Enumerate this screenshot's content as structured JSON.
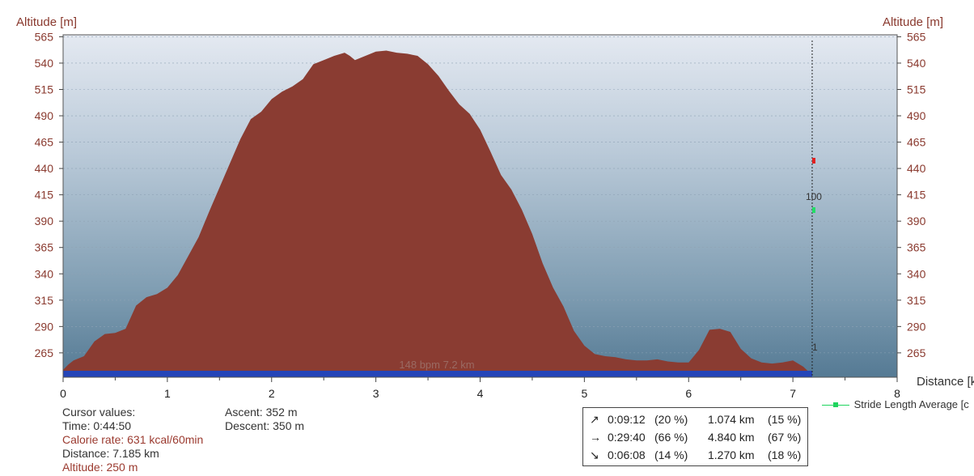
{
  "chart_data": {
    "type": "area",
    "ylabel_left": "Altitude [m]",
    "ylabel_right": "Altitude [m]",
    "xlabel": "Distance [km]",
    "xlim": [
      0,
      8
    ],
    "ylim": [
      248,
      573
    ],
    "yticks": [
      265,
      290,
      315,
      340,
      365,
      390,
      415,
      440,
      465,
      490,
      515,
      540,
      565
    ],
    "xticks": [
      0,
      1,
      2,
      3,
      4,
      5,
      6,
      7,
      8
    ],
    "series": [
      {
        "color": "#8a3c32",
        "x": [
          0,
          0.05,
          0.1,
          0.2,
          0.3,
          0.4,
          0.5,
          0.6,
          0.7,
          0.8,
          0.9,
          1.0,
          1.1,
          1.2,
          1.3,
          1.4,
          1.5,
          1.6,
          1.7,
          1.8,
          1.9,
          2.0,
          2.1,
          2.2,
          2.3,
          2.4,
          2.5,
          2.6,
          2.7,
          2.75,
          2.8,
          2.9,
          3.0,
          3.1,
          3.2,
          3.3,
          3.4,
          3.5,
          3.6,
          3.7,
          3.8,
          3.9,
          4.0,
          4.1,
          4.2,
          4.3,
          4.4,
          4.5,
          4.6,
          4.7,
          4.8,
          4.9,
          5.0,
          5.1,
          5.2,
          5.3,
          5.4,
          5.5,
          5.6,
          5.7,
          5.8,
          5.9,
          6.0,
          6.1,
          6.2,
          6.3,
          6.4,
          6.5,
          6.6,
          6.7,
          6.8,
          6.9,
          7.0,
          7.1,
          7.185
        ],
        "y": [
          255,
          260,
          264,
          268,
          282,
          289,
          290,
          294,
          316,
          324,
          327,
          333,
          345,
          363,
          381,
          405,
          428,
          451,
          474,
          493,
          500,
          512,
          519,
          524,
          531,
          545,
          549,
          553,
          556,
          553,
          549,
          553,
          557,
          558,
          556,
          555,
          553,
          545,
          534,
          520,
          507,
          498,
          483,
          462,
          440,
          426,
          407,
          384,
          356,
          333,
          315,
          292,
          278,
          270,
          268,
          267,
          265,
          264,
          264,
          265,
          263,
          262,
          262,
          274,
          293,
          294,
          291,
          275,
          266,
          262,
          261,
          262,
          264,
          258,
          250
        ]
      }
    ],
    "cursor": {
      "x": 7.185,
      "labels": [
        "100",
        "1"
      ]
    },
    "bar_annotation": "148 bpm 7.2 km",
    "legend": [
      "Stride Length Average [c"
    ]
  },
  "cursor_panel": {
    "header": "Cursor values:",
    "time": "Time: 0:44:50",
    "calorie": "Calorie rate: 631 kcal/60min",
    "distance": "Distance: 7.185 km",
    "altitude": "Altitude: 250 m"
  },
  "totals": {
    "ascent": "Ascent: 352 m",
    "descent": "Descent: 350 m"
  },
  "stats": [
    {
      "icon": "↗",
      "time": "0:09:12",
      "pct_time": "(20 %)",
      "dist": "1.074 km",
      "pct_dist": "(15 %)"
    },
    {
      "icon": "→",
      "time": "0:29:40",
      "pct_time": "(66 %)",
      "dist": "4.840 km",
      "pct_dist": "(67 %)"
    },
    {
      "icon": "↘",
      "time": "0:06:08",
      "pct_time": "(14 %)",
      "dist": "1.270 km",
      "pct_dist": "(18 %)"
    }
  ],
  "colors": {
    "axis_text": "#8a3a2f",
    "fill": "#8a3c32",
    "bar": "#2445b8",
    "cursor_red": "#e02020",
    "cursor_green": "#22dd66"
  }
}
